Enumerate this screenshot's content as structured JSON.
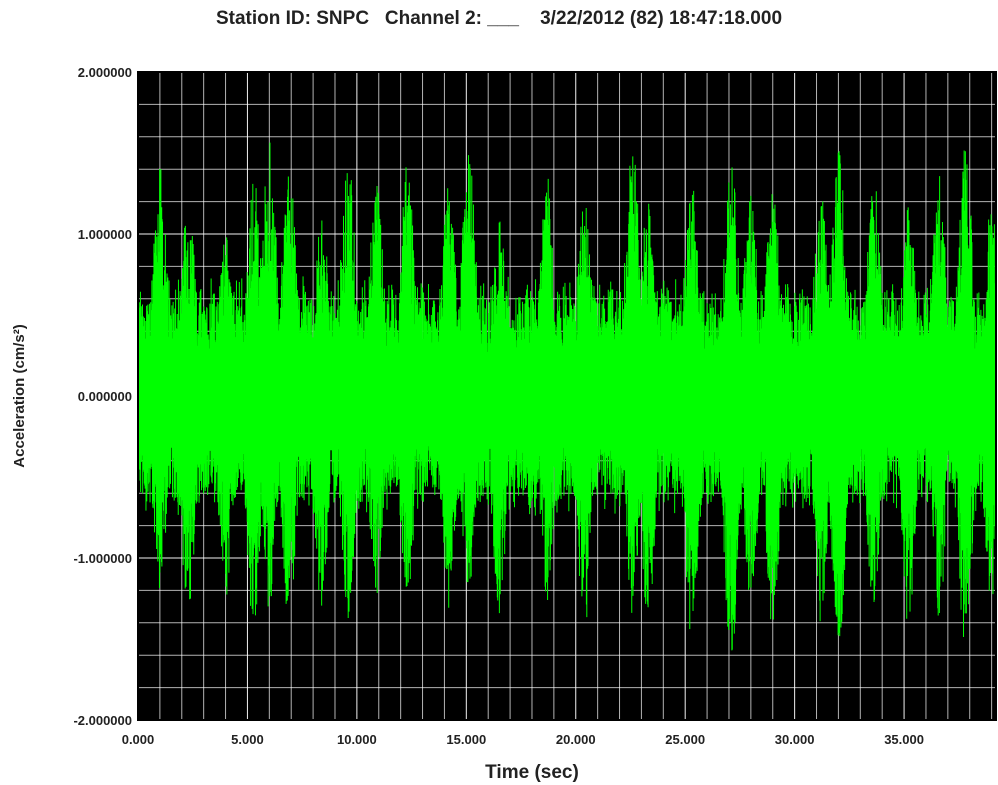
{
  "chart_data": {
    "type": "line",
    "title": "Station ID: SNPC   Channel 2: ___    3/22/2012 (82) 18:47:18.000",
    "xlabel": "Time (sec)",
    "ylabel": "Acceleration (cm/s²)",
    "xlim": [
      0,
      39.2
    ],
    "ylim": [
      -2.0,
      2.0
    ],
    "x_ticks": [
      "0.000",
      "5.000",
      "10.000",
      "15.000",
      "20.000",
      "25.000",
      "30.000",
      "35.000"
    ],
    "y_ticks": [
      "2.000000",
      "1.000000",
      "0.000000",
      "-1.000000",
      "-2.000000"
    ],
    "grid": true,
    "background_color": "#000000",
    "grid_color": "#ffffff",
    "series": [
      {
        "color": "#00ff00",
        "envelope_peaks_approx": [
          {
            "t": 1.0,
            "max": 1.42,
            "min": -1.2
          },
          {
            "t": 2.3,
            "max": 1.22,
            "min": -1.4
          },
          {
            "t": 4.0,
            "max": 1.0,
            "min": -1.25
          },
          {
            "t": 5.3,
            "max": 1.38,
            "min": -1.5
          },
          {
            "t": 6.0,
            "max": 1.58,
            "min": -1.32
          },
          {
            "t": 6.9,
            "max": 1.45,
            "min": -1.4
          },
          {
            "t": 8.4,
            "max": 1.1,
            "min": -1.35
          },
          {
            "t": 9.6,
            "max": 1.5,
            "min": -1.38
          },
          {
            "t": 10.9,
            "max": 1.32,
            "min": -1.25
          },
          {
            "t": 12.3,
            "max": 1.44,
            "min": -1.3
          },
          {
            "t": 14.2,
            "max": 1.3,
            "min": -1.35
          },
          {
            "t": 15.1,
            "max": 1.55,
            "min": -1.2
          },
          {
            "t": 16.5,
            "max": 1.12,
            "min": -1.35
          },
          {
            "t": 18.7,
            "max": 1.38,
            "min": -1.28
          },
          {
            "t": 20.4,
            "max": 1.25,
            "min": -1.45
          },
          {
            "t": 22.6,
            "max": 1.6,
            "min": -1.35
          },
          {
            "t": 23.3,
            "max": 1.2,
            "min": -1.4
          },
          {
            "t": 25.3,
            "max": 1.32,
            "min": -1.5
          },
          {
            "t": 27.1,
            "max": 1.48,
            "min": -1.65
          },
          {
            "t": 28.0,
            "max": 1.25,
            "min": -1.3
          },
          {
            "t": 29.0,
            "max": 1.3,
            "min": -1.45
          },
          {
            "t": 31.2,
            "max": 1.25,
            "min": -1.48
          },
          {
            "t": 32.0,
            "max": 1.55,
            "min": -1.6
          },
          {
            "t": 33.6,
            "max": 1.4,
            "min": -1.3
          },
          {
            "t": 35.2,
            "max": 1.25,
            "min": -1.45
          },
          {
            "t": 36.6,
            "max": 1.38,
            "min": -1.4
          },
          {
            "t": 37.8,
            "max": 1.58,
            "min": -1.6
          },
          {
            "t": 39.0,
            "max": 1.2,
            "min": -1.3
          }
        ]
      }
    ]
  }
}
